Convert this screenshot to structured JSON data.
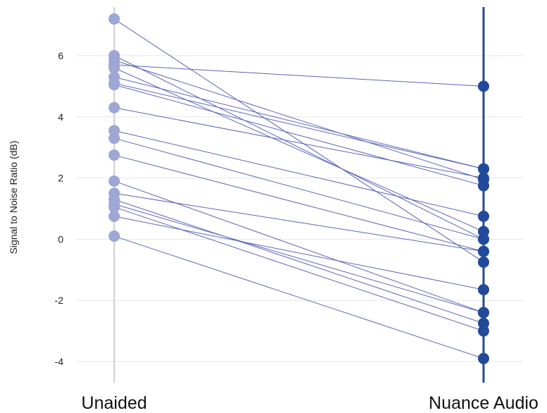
{
  "chart_data": {
    "type": "line",
    "title": "",
    "xlabel": "",
    "ylabel": "Signal to Noise Ratio (dB)",
    "categories": [
      "Unaided",
      "Nuance Audio"
    ],
    "ylim": [
      -4.5,
      7.5
    ],
    "yticks": [
      6,
      4,
      2,
      0,
      -2,
      -4
    ],
    "ytick_labels": [
      "6",
      "4",
      "2",
      "0",
      "-2",
      "-4"
    ],
    "grid": true,
    "colors": {
      "unaided_marker": "#9ea6d5",
      "nuance_marker": "#214a9a",
      "pair_line": "#5b66b8",
      "unaided_axis": "#d0d0d0",
      "nuance_axis": "#214a9a",
      "grid": "#e6e6e6"
    },
    "pairs": [
      [
        7.2,
        -0.75
      ],
      [
        6.0,
        0.0
      ],
      [
        5.85,
        1.95
      ],
      [
        5.7,
        5.0
      ],
      [
        5.6,
        0.25
      ],
      [
        5.3,
        2.3
      ],
      [
        5.1,
        2.3
      ],
      [
        5.05,
        1.75
      ],
      [
        4.3,
        2.0
      ],
      [
        3.55,
        0.75
      ],
      [
        3.3,
        0.0
      ],
      [
        2.75,
        -0.4
      ],
      [
        1.9,
        -2.4
      ],
      [
        1.5,
        -0.4
      ],
      [
        1.3,
        -2.75
      ],
      [
        1.15,
        -2.4
      ],
      [
        1.05,
        -3.0
      ],
      [
        0.75,
        -1.65
      ],
      [
        0.1,
        -3.9
      ]
    ]
  }
}
